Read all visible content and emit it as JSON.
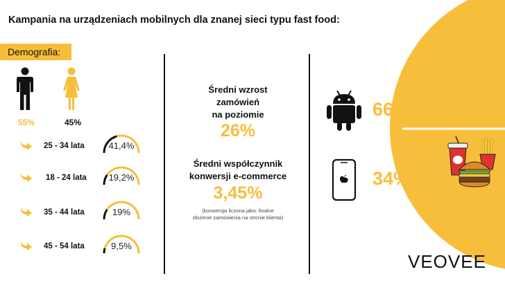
{
  "title": "Kampania na urządzeniach mobilnych dla znanej sieci typu fast food:",
  "demographics": {
    "label": "Demografia:",
    "male_pct": "55%",
    "female_pct": "45%",
    "colors": {
      "male": "#111111",
      "female": "#f7be3b"
    }
  },
  "age_groups": [
    {
      "label": "25 - 34 lata",
      "value": "41,4%",
      "fraction": 0.414
    },
    {
      "label": "18 - 24 lata",
      "value": "19,2%",
      "fraction": 0.192
    },
    {
      "label": "35 - 44 lata",
      "value": "19%",
      "fraction": 0.19
    },
    {
      "label": "45 - 54 lata",
      "value": "9,5%",
      "fraction": 0.095
    }
  ],
  "stats": {
    "orders_heading": "Średni wzrost\nzamówień\nna poziomie",
    "orders_value": "26%",
    "conversion_heading": "Średni współczynnik\nkonwersji e-commerce",
    "conversion_value": "3,45%",
    "conversion_note": "(konwersja liczona jako: finalne\nzłożenie zamówienia na stronie klienta)"
  },
  "platforms": {
    "android_pct": "66%",
    "ios_pct": "34%",
    "android_icon": "android-icon",
    "ios_icon": "apple-phone-icon"
  },
  "logo": "VEOVEE",
  "accent_color": "#f7be3b"
}
